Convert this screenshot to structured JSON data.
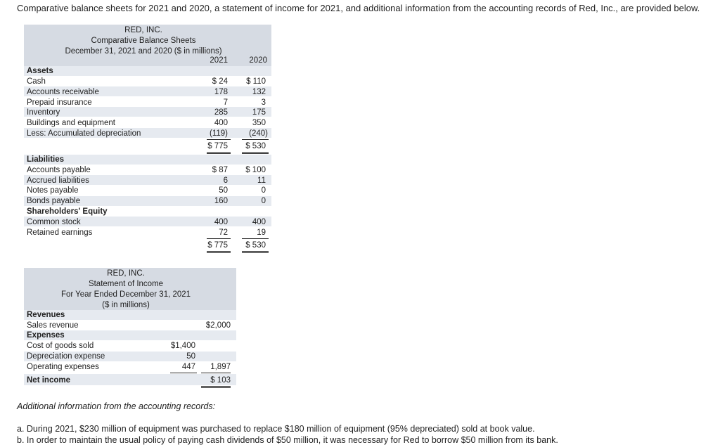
{
  "intro": "Comparative balance sheets for 2021 and 2020, a statement of income for 2021, and additional information from the accounting records of Red, Inc., are provided below.",
  "bs": {
    "company": "RED, INC.",
    "title": "Comparative Balance Sheets",
    "period": "December 31, 2021 and 2020 ($ in millions)",
    "col1": "2021",
    "col2": "2020",
    "assets_heading": "Assets",
    "assets": [
      {
        "label": "Cash",
        "v1": "$ 24",
        "v2": "$ 110"
      },
      {
        "label": "Accounts receivable",
        "v1": "178",
        "v2": "132"
      },
      {
        "label": "Prepaid insurance",
        "v1": "7",
        "v2": "3"
      },
      {
        "label": "Inventory",
        "v1": "285",
        "v2": "175"
      },
      {
        "label": "Buildings and equipment",
        "v1": "400",
        "v2": "350"
      },
      {
        "label": "Less: Accumulated depreciation",
        "v1": "(119)",
        "v2": "(240)"
      }
    ],
    "assets_total": {
      "v1": "$ 775",
      "v2": "$ 530"
    },
    "liab_heading": "Liabilities",
    "liabilities": [
      {
        "label": "Accounts payable",
        "v1": "$ 87",
        "v2": "$ 100"
      },
      {
        "label": "Accrued liabilities",
        "v1": "6",
        "v2": "11"
      },
      {
        "label": "Notes payable",
        "v1": "50",
        "v2": "0"
      },
      {
        "label": "Bonds payable",
        "v1": "160",
        "v2": "0"
      }
    ],
    "equity_heading": "Shareholders' Equity",
    "equity": [
      {
        "label": "Common stock",
        "v1": "400",
        "v2": "400"
      },
      {
        "label": "Retained earnings",
        "v1": "72",
        "v2": "19"
      }
    ],
    "liab_total": {
      "v1": "$ 775",
      "v2": "$ 530"
    }
  },
  "is": {
    "company": "RED, INC.",
    "title": "Statement of Income",
    "period": "For Year Ended December 31, 2021",
    "units": "($ in millions)",
    "revenues_heading": "Revenues",
    "sales_label": "Sales revenue",
    "sales_value": "$2,000",
    "expenses_heading": "Expenses",
    "expenses": [
      {
        "label": "Cost of goods sold",
        "v": "$1,400"
      },
      {
        "label": "Depreciation expense",
        "v": "50"
      },
      {
        "label": "Operating expenses",
        "v": "447"
      }
    ],
    "expenses_total": "1,897",
    "net_income_label": "Net income",
    "net_income_value": "$ 103"
  },
  "additional_heading": "Additional information from the accounting records:",
  "notes": [
    "a. During 2021, $230 million of equipment was purchased to replace $180 million of equipment (95% depreciated) sold at book value.",
    "b. In order to maintain the usual policy of paying cash dividends of $50 million, it was necessary for Red to borrow $50 million from its bank."
  ]
}
